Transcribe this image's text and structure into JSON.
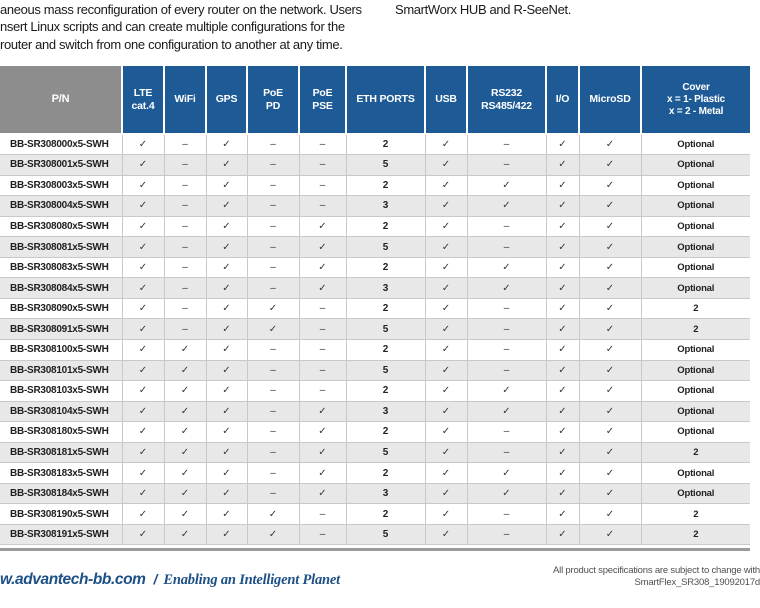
{
  "colors": {
    "header_blue": "#1e5b96",
    "pn_gray": "#8d8d8d",
    "row_alt": "#e8e8e8",
    "border_gray": "#c9c9c9",
    "footer_blue": "#1c5086",
    "bar_gray": "#9b9b9b",
    "note_gray": "#4f4f4f",
    "text_dark": "#1a1a1a"
  },
  "intro": {
    "left_lines": [
      "aneous mass reconfiguration of every router on the network. Users",
      "nsert Linux scripts and can create multiple configurations for the",
      "router and switch from one configuration to another at any time."
    ],
    "right_text": "SmartWorx HUB and R-SeeNet."
  },
  "table": {
    "glyphs": {
      "check": "✓",
      "dash": "–"
    },
    "columns": [
      {
        "id": "pn",
        "lines": [
          "P/N"
        ]
      },
      {
        "id": "lte",
        "lines": [
          "LTE",
          "cat.4"
        ]
      },
      {
        "id": "wifi",
        "lines": [
          "WiFi"
        ]
      },
      {
        "id": "gps",
        "lines": [
          "GPS"
        ]
      },
      {
        "id": "poe_pd",
        "lines": [
          "PoE",
          "PD"
        ]
      },
      {
        "id": "poe_pse",
        "lines": [
          "PoE",
          "PSE"
        ]
      },
      {
        "id": "eth",
        "lines": [
          "ETH PORTS"
        ]
      },
      {
        "id": "usb",
        "lines": [
          "USB"
        ]
      },
      {
        "id": "rs",
        "lines": [
          "RS232",
          "RS485/422"
        ]
      },
      {
        "id": "io",
        "lines": [
          "I/O"
        ]
      },
      {
        "id": "microsd",
        "lines": [
          "MicroSD"
        ]
      },
      {
        "id": "cover",
        "lines": [
          "Cover",
          "x = 1- Plastic",
          "x = 2 - Metal"
        ]
      }
    ],
    "rows": [
      {
        "pn": "BB-SR308000x5-SWH",
        "lte": true,
        "wifi": false,
        "gps": true,
        "poe_pd": false,
        "poe_pse": false,
        "eth": "2",
        "usb": true,
        "rs": false,
        "io": true,
        "microsd": true,
        "cover": "Optional"
      },
      {
        "pn": "BB-SR308001x5-SWH",
        "lte": true,
        "wifi": false,
        "gps": true,
        "poe_pd": false,
        "poe_pse": false,
        "eth": "5",
        "usb": true,
        "rs": false,
        "io": true,
        "microsd": true,
        "cover": "Optional"
      },
      {
        "pn": "BB-SR308003x5-SWH",
        "lte": true,
        "wifi": false,
        "gps": true,
        "poe_pd": false,
        "poe_pse": false,
        "eth": "2",
        "usb": true,
        "rs": true,
        "io": true,
        "microsd": true,
        "cover": "Optional"
      },
      {
        "pn": "BB-SR308004x5-SWH",
        "lte": true,
        "wifi": false,
        "gps": true,
        "poe_pd": false,
        "poe_pse": false,
        "eth": "3",
        "usb": true,
        "rs": true,
        "io": true,
        "microsd": true,
        "cover": "Optional"
      },
      {
        "pn": "BB-SR308080x5-SWH",
        "lte": true,
        "wifi": false,
        "gps": true,
        "poe_pd": false,
        "poe_pse": true,
        "eth": "2",
        "usb": true,
        "rs": false,
        "io": true,
        "microsd": true,
        "cover": "Optional"
      },
      {
        "pn": "BB-SR308081x5-SWH",
        "lte": true,
        "wifi": false,
        "gps": true,
        "poe_pd": false,
        "poe_pse": true,
        "eth": "5",
        "usb": true,
        "rs": false,
        "io": true,
        "microsd": true,
        "cover": "Optional"
      },
      {
        "pn": "BB-SR308083x5-SWH",
        "lte": true,
        "wifi": false,
        "gps": true,
        "poe_pd": false,
        "poe_pse": true,
        "eth": "2",
        "usb": true,
        "rs": true,
        "io": true,
        "microsd": true,
        "cover": "Optional"
      },
      {
        "pn": "BB-SR308084x5-SWH",
        "lte": true,
        "wifi": false,
        "gps": true,
        "poe_pd": false,
        "poe_pse": true,
        "eth": "3",
        "usb": true,
        "rs": true,
        "io": true,
        "microsd": true,
        "cover": "Optional"
      },
      {
        "pn": "BB-SR308090x5-SWH",
        "lte": true,
        "wifi": false,
        "gps": true,
        "poe_pd": true,
        "poe_pse": false,
        "eth": "2",
        "usb": true,
        "rs": false,
        "io": true,
        "microsd": true,
        "cover": "2"
      },
      {
        "pn": "BB-SR308091x5-SWH",
        "lte": true,
        "wifi": false,
        "gps": true,
        "poe_pd": true,
        "poe_pse": false,
        "eth": "5",
        "usb": true,
        "rs": false,
        "io": true,
        "microsd": true,
        "cover": "2"
      },
      {
        "pn": "BB-SR308100x5-SWH",
        "lte": true,
        "wifi": true,
        "gps": true,
        "poe_pd": false,
        "poe_pse": false,
        "eth": "2",
        "usb": true,
        "rs": false,
        "io": true,
        "microsd": true,
        "cover": "Optional"
      },
      {
        "pn": "BB-SR308101x5-SWH",
        "lte": true,
        "wifi": true,
        "gps": true,
        "poe_pd": false,
        "poe_pse": false,
        "eth": "5",
        "usb": true,
        "rs": false,
        "io": true,
        "microsd": true,
        "cover": "Optional"
      },
      {
        "pn": "BB-SR308103x5-SWH",
        "lte": true,
        "wifi": true,
        "gps": true,
        "poe_pd": false,
        "poe_pse": false,
        "eth": "2",
        "usb": true,
        "rs": true,
        "io": true,
        "microsd": true,
        "cover": "Optional"
      },
      {
        "pn": "BB-SR308104x5-SWH",
        "lte": true,
        "wifi": true,
        "gps": true,
        "poe_pd": false,
        "poe_pse": true,
        "eth": "3",
        "usb": true,
        "rs": true,
        "io": true,
        "microsd": true,
        "cover": "Optional"
      },
      {
        "pn": "BB-SR308180x5-SWH",
        "lte": true,
        "wifi": true,
        "gps": true,
        "poe_pd": false,
        "poe_pse": true,
        "eth": "2",
        "usb": true,
        "rs": false,
        "io": true,
        "microsd": true,
        "cover": "Optional"
      },
      {
        "pn": "BB-SR308181x5-SWH",
        "lte": true,
        "wifi": true,
        "gps": true,
        "poe_pd": false,
        "poe_pse": true,
        "eth": "5",
        "usb": true,
        "rs": false,
        "io": true,
        "microsd": true,
        "cover": "2"
      },
      {
        "pn": "BB-SR308183x5-SWH",
        "lte": true,
        "wifi": true,
        "gps": true,
        "poe_pd": false,
        "poe_pse": true,
        "eth": "2",
        "usb": true,
        "rs": true,
        "io": true,
        "microsd": true,
        "cover": "Optional"
      },
      {
        "pn": "BB-SR308184x5-SWH",
        "lte": true,
        "wifi": true,
        "gps": true,
        "poe_pd": false,
        "poe_pse": true,
        "eth": "3",
        "usb": true,
        "rs": true,
        "io": true,
        "microsd": true,
        "cover": "Optional"
      },
      {
        "pn": "BB-SR308190x5-SWH",
        "lte": true,
        "wifi": true,
        "gps": true,
        "poe_pd": true,
        "poe_pse": false,
        "eth": "2",
        "usb": true,
        "rs": false,
        "io": true,
        "microsd": true,
        "cover": "2"
      },
      {
        "pn": "BB-SR308191x5-SWH",
        "lte": true,
        "wifi": true,
        "gps": true,
        "poe_pd": true,
        "poe_pse": false,
        "eth": "5",
        "usb": true,
        "rs": false,
        "io": true,
        "microsd": true,
        "cover": "2"
      }
    ]
  },
  "footer": {
    "website": "w.advantech-bb.com",
    "separator": "/",
    "tagline": "Enabling an Intelligent Planet",
    "note_line1": "All product specifications are subject to change with",
    "note_line2": "SmartFlex_SR308_19092017d"
  }
}
